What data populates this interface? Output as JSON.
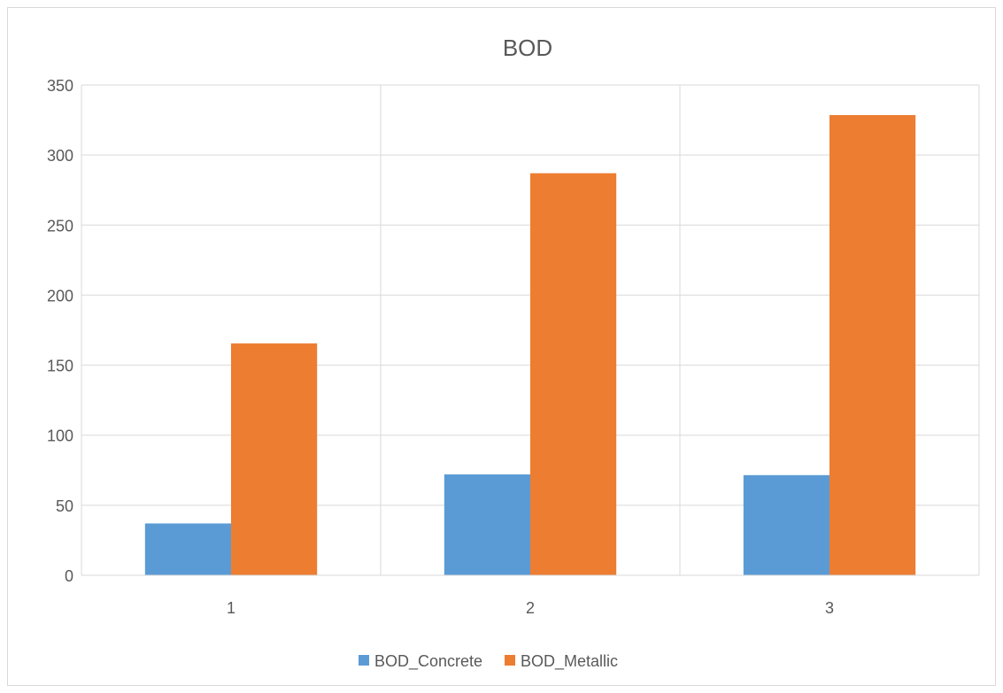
{
  "chart_data": {
    "type": "bar",
    "title": "BOD",
    "categories": [
      "1",
      "2",
      "3"
    ],
    "series": [
      {
        "name": "BOD_Concrete",
        "values": [
          37,
          72,
          71.5
        ],
        "color": "#5b9bd5"
      },
      {
        "name": "BOD_Metallic",
        "values": [
          165.5,
          287,
          328.5
        ],
        "color": "#ed7d31"
      }
    ],
    "xlabel": "",
    "ylabel": "",
    "ylim": [
      0,
      350
    ],
    "yticks": [
      0,
      50,
      100,
      150,
      200,
      250,
      300,
      350
    ],
    "grid": true,
    "legend_position": "bottom"
  }
}
